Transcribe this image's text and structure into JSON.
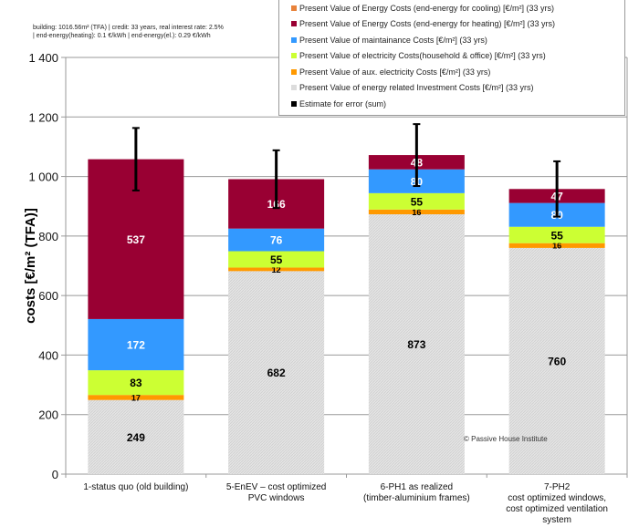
{
  "chart_data": {
    "type": "bar",
    "stacked": true,
    "title": "",
    "annotation": [
      "building: 1016.56m² (TFA) | credit: 33 years,  real interest rate: 2.5%",
      "| end-energy(heating):  0.1 €/kWh  |  end-energy(el.):  0.29 €/kWh"
    ],
    "watermark": "© Passive House  Institute",
    "ylabel": "costs [€/m² (TFA)]",
    "xlabel": "",
    "ylim": [
      0,
      1400
    ],
    "yticks": [
      0,
      200,
      400,
      600,
      800,
      1000,
      1200,
      1400
    ],
    "ytick_labels": [
      "0",
      "200",
      "400",
      "600",
      "800",
      "1 000",
      "1 200",
      "1 400"
    ],
    "grid": true,
    "legend_position": "top-right",
    "categories": [
      [
        "1-status quo (old building)"
      ],
      [
        "5-EnEV – cost optimized",
        "PVC windows"
      ],
      [
        "6-PH1 as realized",
        "(timber-aluminium frames)"
      ],
      [
        "7-PH2",
        "cost optimized windows,",
        "cost optimized ventilation",
        "system"
      ]
    ],
    "series": [
      {
        "name": "Present Value of energy related  Investment  Costs  [€/m²]  (33 yrs)",
        "color": "#dcdcdc",
        "label_color": "#000",
        "values": [
          249,
          682,
          873,
          760
        ]
      },
      {
        "name": "Present  Value of aux. electricity  Costs [€/m²]  (33 yrs)",
        "color": "#ff9900",
        "label_color": "#000",
        "values": [
          17,
          12,
          16,
          16
        ]
      },
      {
        "name": "Present  Value of electricity  Costs(household  &  office)  [€/m²]  (33 yrs)",
        "color": "#ccff33",
        "label_color": "#000",
        "values": [
          83,
          55,
          55,
          55
        ]
      },
      {
        "name": "Present  Value of maintainance  Costs  [€/m²]  (33 yrs)",
        "color": "#3399ff",
        "label_color": "#fff",
        "values": [
          172,
          76,
          80,
          80
        ]
      },
      {
        "name": "Present  Value of Energy Costs  (end-energy  for heating)  [€/m²]  (33 yrs)",
        "color": "#990033",
        "label_color": "#fff",
        "values": [
          537,
          166,
          48,
          47
        ]
      },
      {
        "name": "Present  Value of Energy Costs  (end-energy  for cooling)  [€/m²]  (33 yrs)",
        "color": "#e8823a",
        "label_color": "#000",
        "values": [
          0,
          0,
          0,
          0
        ]
      }
    ],
    "error": {
      "name": "Estimate for error (sum)",
      "color": "#000000",
      "values": [
        105,
        97,
        104,
        93
      ]
    }
  }
}
